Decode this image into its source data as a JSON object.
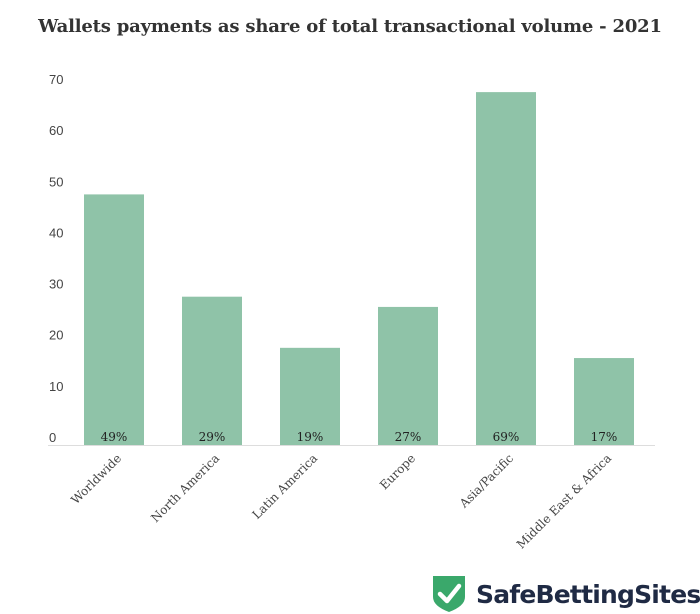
{
  "chart_data": {
    "type": "bar",
    "title": "Wallets payments as share of total transactional volume - 2021",
    "categories": [
      "Worldwide",
      "North America",
      "Latin America",
      "Europe",
      "Asia/Pacific",
      "Middle East & Africa"
    ],
    "values": [
      49,
      29,
      19,
      27,
      69,
      17
    ],
    "data_labels": [
      "49%",
      "29%",
      "19%",
      "27%",
      "69%",
      "17%"
    ],
    "xlabel": "",
    "ylabel": "",
    "ylim": [
      0,
      70
    ],
    "yticks": [
      0,
      10,
      20,
      30,
      40,
      50,
      60,
      70
    ],
    "grid": false,
    "bar_color": "#8fc3a8"
  },
  "brand": {
    "name": "SafeBettingSites",
    "shield_color": "#3aa86b"
  }
}
